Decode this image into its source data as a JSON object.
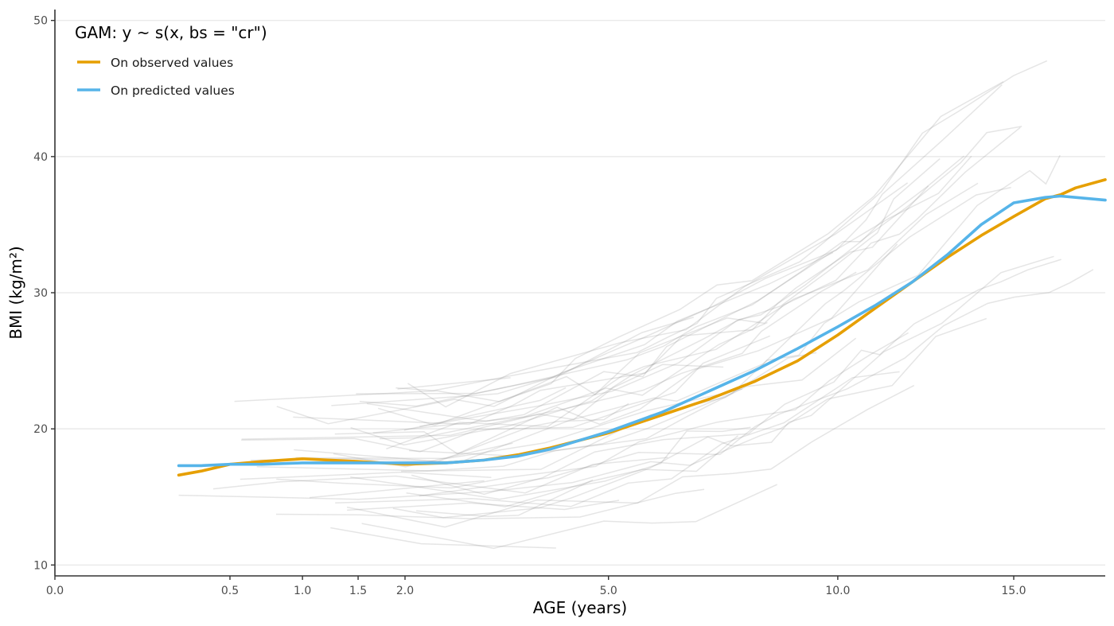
{
  "chart_data": {
    "type": "line",
    "title": "",
    "xlabel": "AGE (years)",
    "ylabel": "BMI (kg/m²)",
    "x_scale": "sqrt",
    "xlim": [
      0,
      18
    ],
    "ylim": [
      9.2,
      50.8
    ],
    "x_ticks": [
      0,
      0.5,
      1,
      1.5,
      2,
      5,
      10,
      15
    ],
    "x_tick_labels": [
      "0.0",
      "0.5",
      "1.0",
      "1.5",
      "2.0",
      "5.0",
      "10.0",
      "15.0"
    ],
    "y_ticks": [
      10,
      20,
      30,
      40,
      50
    ],
    "y_tick_labels": [
      "10",
      "20",
      "30",
      "40",
      "50"
    ],
    "grid": "horizontal major",
    "legend": {
      "title": "GAM: y ~ s(x, bs = \"cr\")",
      "position": "top-left",
      "entries": [
        {
          "label": "On observed values",
          "color": "#E69F00"
        },
        {
          "label": "On predicted values",
          "color": "#56B4E9"
        }
      ]
    },
    "series": [
      {
        "name": "On observed values",
        "color": "#E69F00",
        "x": [
          0.25,
          0.35,
          0.5,
          0.7,
          1.0,
          1.5,
          2.0,
          2.5,
          3.0,
          3.5,
          4.0,
          5.0,
          6.0,
          7.0,
          8.0,
          9.0,
          10.0,
          11.0,
          12.0,
          13.0,
          14.0,
          15.0,
          16.0,
          16.5,
          17.0,
          18.0
        ],
        "y": [
          16.6,
          16.9,
          17.4,
          17.6,
          17.8,
          17.6,
          17.4,
          17.5,
          17.7,
          18.1,
          18.6,
          19.7,
          21.0,
          22.2,
          23.5,
          25.0,
          26.9,
          28.9,
          30.8,
          32.6,
          34.2,
          35.6,
          36.9,
          37.2,
          37.7,
          38.3
        ]
      },
      {
        "name": "On predicted values",
        "color": "#56B4E9",
        "x": [
          0.25,
          0.35,
          0.5,
          0.7,
          1.0,
          1.5,
          2.0,
          2.5,
          3.0,
          3.5,
          4.0,
          5.0,
          6.0,
          7.0,
          8.0,
          9.0,
          10.0,
          11.0,
          12.0,
          13.0,
          14.0,
          15.0,
          16.0,
          16.5,
          17.0,
          18.0
        ],
        "y": [
          17.3,
          17.3,
          17.4,
          17.4,
          17.5,
          17.5,
          17.5,
          17.5,
          17.7,
          18.0,
          18.5,
          19.8,
          21.2,
          22.8,
          24.3,
          25.9,
          27.5,
          29.1,
          30.8,
          32.8,
          35.0,
          36.6,
          37.0,
          37.1,
          37.0,
          36.8
        ]
      }
    ],
    "background_trajectories": {
      "color": "#888888",
      "description_count": 44
    }
  }
}
